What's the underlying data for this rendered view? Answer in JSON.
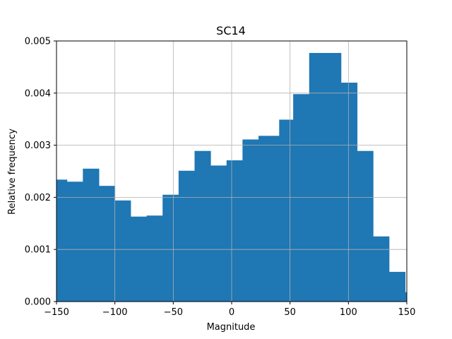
{
  "chart_data": {
    "type": "bar",
    "title": "SC14",
    "xlabel": "Magnitude",
    "ylabel": "Relative frequency",
    "xlim": [
      -150,
      150
    ],
    "ylim": [
      0,
      0.005
    ],
    "grid": true,
    "bar_color": "#1f77b4",
    "bin_width": 13.64,
    "bins": [
      {
        "x0": -150.0,
        "x1": -141.1,
        "value": 0.00234
      },
      {
        "x0": -141.1,
        "x1": -127.42,
        "value": 0.0023
      },
      {
        "x0": -127.42,
        "x1": -113.72,
        "value": 0.00255
      },
      {
        "x0": -113.72,
        "x1": -100.04,
        "value": 0.00222
      },
      {
        "x0": -100.04,
        "x1": -86.54,
        "value": 0.00194
      },
      {
        "x0": -86.54,
        "x1": -72.84,
        "value": 0.00163
      },
      {
        "x0": -72.84,
        "x1": -59.14,
        "value": 0.00165
      },
      {
        "x0": -59.14,
        "x1": -45.46,
        "value": 0.00205
      },
      {
        "x0": -45.46,
        "x1": -31.76,
        "value": 0.00251
      },
      {
        "x0": -31.76,
        "x1": -18.08,
        "value": 0.00289
      },
      {
        "x0": -18.08,
        "x1": -4.38,
        "value": 0.00261
      },
      {
        "x0": -4.38,
        "x1": 9.3,
        "value": 0.00271
      },
      {
        "x0": 9.3,
        "x1": 23.0,
        "value": 0.00311
      },
      {
        "x0": 23.0,
        "x1": 40.7,
        "value": 0.00318
      },
      {
        "x0": 40.7,
        "x1": 52.7,
        "value": 0.00349
      },
      {
        "x0": 52.7,
        "x1": 66.4,
        "value": 0.00398
      },
      {
        "x0": 66.4,
        "x1": 80.1,
        "value": 0.00477
      },
      {
        "x0": 80.1,
        "x1": 93.6,
        "value": 0.00477
      },
      {
        "x0": 93.6,
        "x1": 107.4,
        "value": 0.0042
      },
      {
        "x0": 107.4,
        "x1": 121.1,
        "value": 0.00289
      },
      {
        "x0": 121.1,
        "x1": 134.8,
        "value": 0.00125
      },
      {
        "x0": 134.8,
        "x1": 148.5,
        "value": 0.00057
      },
      {
        "x0": 148.5,
        "x1": 150.0,
        "value": 0.00018
      }
    ],
    "x_ticks": [
      {
        "value": -150,
        "label": "−150"
      },
      {
        "value": -100,
        "label": "−100"
      },
      {
        "value": -50,
        "label": "−50"
      },
      {
        "value": 0,
        "label": "0"
      },
      {
        "value": 50,
        "label": "50"
      },
      {
        "value": 100,
        "label": "100"
      },
      {
        "value": 150,
        "label": "150"
      }
    ],
    "y_ticks": [
      {
        "value": 0,
        "label": "0.000"
      },
      {
        "value": 0.001,
        "label": "0.001"
      },
      {
        "value": 0.002,
        "label": "0.002"
      },
      {
        "value": 0.003,
        "label": "0.003"
      },
      {
        "value": 0.004,
        "label": "0.004"
      },
      {
        "value": 0.005,
        "label": "0.005"
      }
    ]
  }
}
